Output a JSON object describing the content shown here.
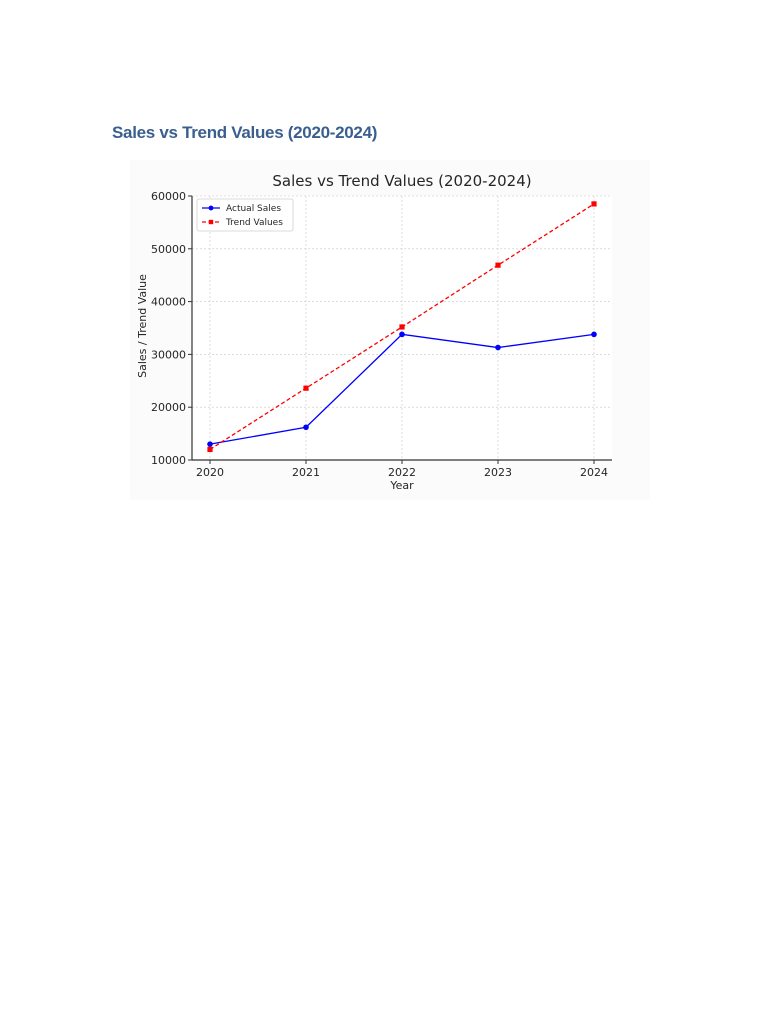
{
  "document": {
    "heading": "Sales vs Trend Values (2020-2024)",
    "heading_color": "#3a5f8f"
  },
  "chart_data": {
    "type": "line",
    "title": "Sales vs Trend Values (2020-2024)",
    "xlabel": "Year",
    "ylabel": "Sales / Trend Value",
    "x": [
      "2020",
      "2021",
      "2022",
      "2023",
      "2024"
    ],
    "ylim": [
      10000,
      60000
    ],
    "yticks": [
      "10000",
      "20000",
      "30000",
      "40000",
      "50000",
      "60000"
    ],
    "grid": true,
    "legend_position": "top-left",
    "series": [
      {
        "name": "Actual Sales",
        "values": [
          13000,
          16200,
          33800,
          31300,
          33800
        ],
        "color": "#0000ff",
        "marker": "circle",
        "style": "solid"
      },
      {
        "name": "Trend Values",
        "values": [
          12000,
          23600,
          35200,
          46900,
          58500
        ],
        "color": "#ff0000",
        "marker": "square",
        "style": "dashed"
      }
    ]
  }
}
